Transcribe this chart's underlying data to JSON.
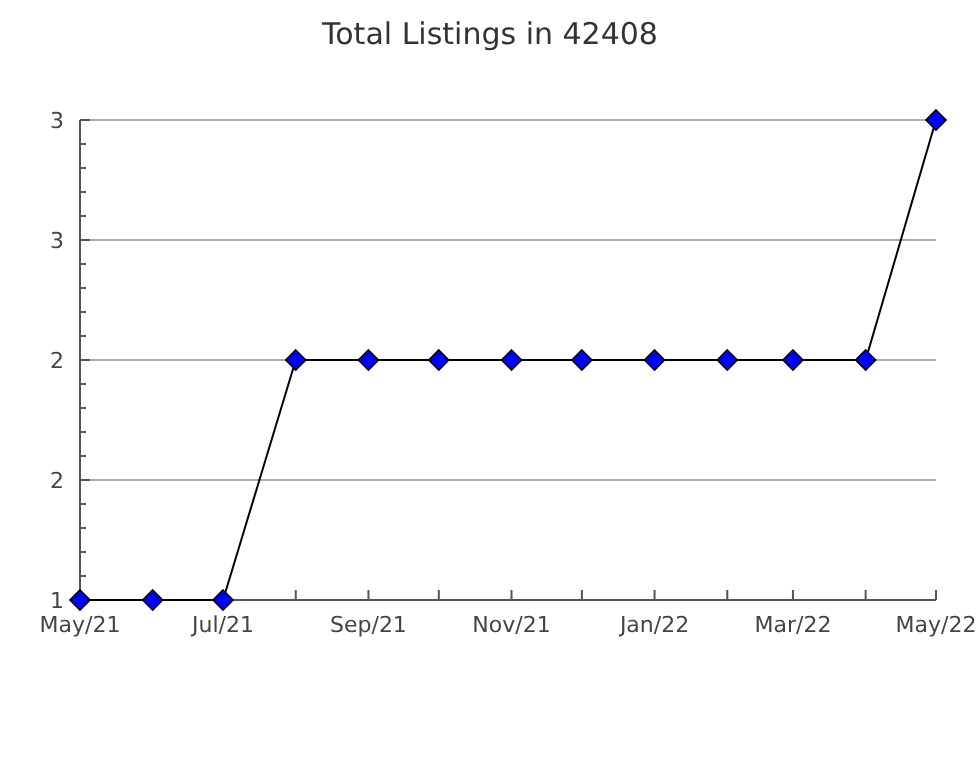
{
  "chart_data": {
    "type": "line",
    "title": "Total Listings in 42408",
    "x": [
      "2021-05",
      "2021-06",
      "2021-07",
      "2021-08",
      "2021-09",
      "2021-10",
      "2021-11",
      "2021-12",
      "2022-01",
      "2022-02",
      "2022-03",
      "2022-04",
      "2022-05"
    ],
    "series": [
      {
        "color": "#0000ff",
        "values": [
          1,
          1,
          1,
          2,
          2,
          2,
          2,
          2,
          2,
          2,
          2,
          2,
          3
        ]
      }
    ],
    "xlim": [
      "2021-05",
      "2022-05"
    ],
    "xticks": [
      {
        "value": "2021-05",
        "label": "May/21"
      },
      {
        "value": "2021-06",
        "label": null
      },
      {
        "value": "2021-07",
        "label": "Jul/21"
      },
      {
        "value": "2021-08",
        "label": null
      },
      {
        "value": "2021-09",
        "label": "Sep/21"
      },
      {
        "value": "2021-10",
        "label": null
      },
      {
        "value": "2021-11",
        "label": "Nov/21"
      },
      {
        "value": "2021-12",
        "label": null
      },
      {
        "value": "2022-01",
        "label": "Jan/22"
      },
      {
        "value": "2022-02",
        "label": null
      },
      {
        "value": "2022-03",
        "label": "Mar/22"
      },
      {
        "value": "2022-04",
        "label": null
      },
      {
        "value": "2022-05",
        "label": "May/22"
      }
    ],
    "ylim": [
      1,
      3
    ],
    "yticks": [
      1,
      {
        "value": 1.1,
        "label": null
      },
      {
        "value": 1.2,
        "label": null
      },
      {
        "value": 1.3,
        "label": null
      },
      {
        "value": 1.4,
        "label": null
      },
      {
        "value": 1.5,
        "label": "2"
      },
      {
        "value": 1.6,
        "label": null
      },
      {
        "value": 1.7,
        "label": null
      },
      {
        "value": 1.8,
        "label": null
      },
      {
        "value": 1.9,
        "label": null
      },
      2,
      {
        "value": 2.1,
        "label": null
      },
      {
        "value": 2.2,
        "label": null
      },
      {
        "value": 2.3,
        "label": null
      },
      {
        "value": 2.4,
        "label": null
      },
      {
        "value": 2.5,
        "label": "3"
      },
      {
        "value": 2.6,
        "label": null
      },
      {
        "value": 2.7,
        "label": null
      },
      {
        "value": 2.8,
        "label": null
      },
      {
        "value": 2.9,
        "label": null
      },
      3
    ],
    "grid": "y",
    "marker": "diamond",
    "line_style": "solid"
  }
}
